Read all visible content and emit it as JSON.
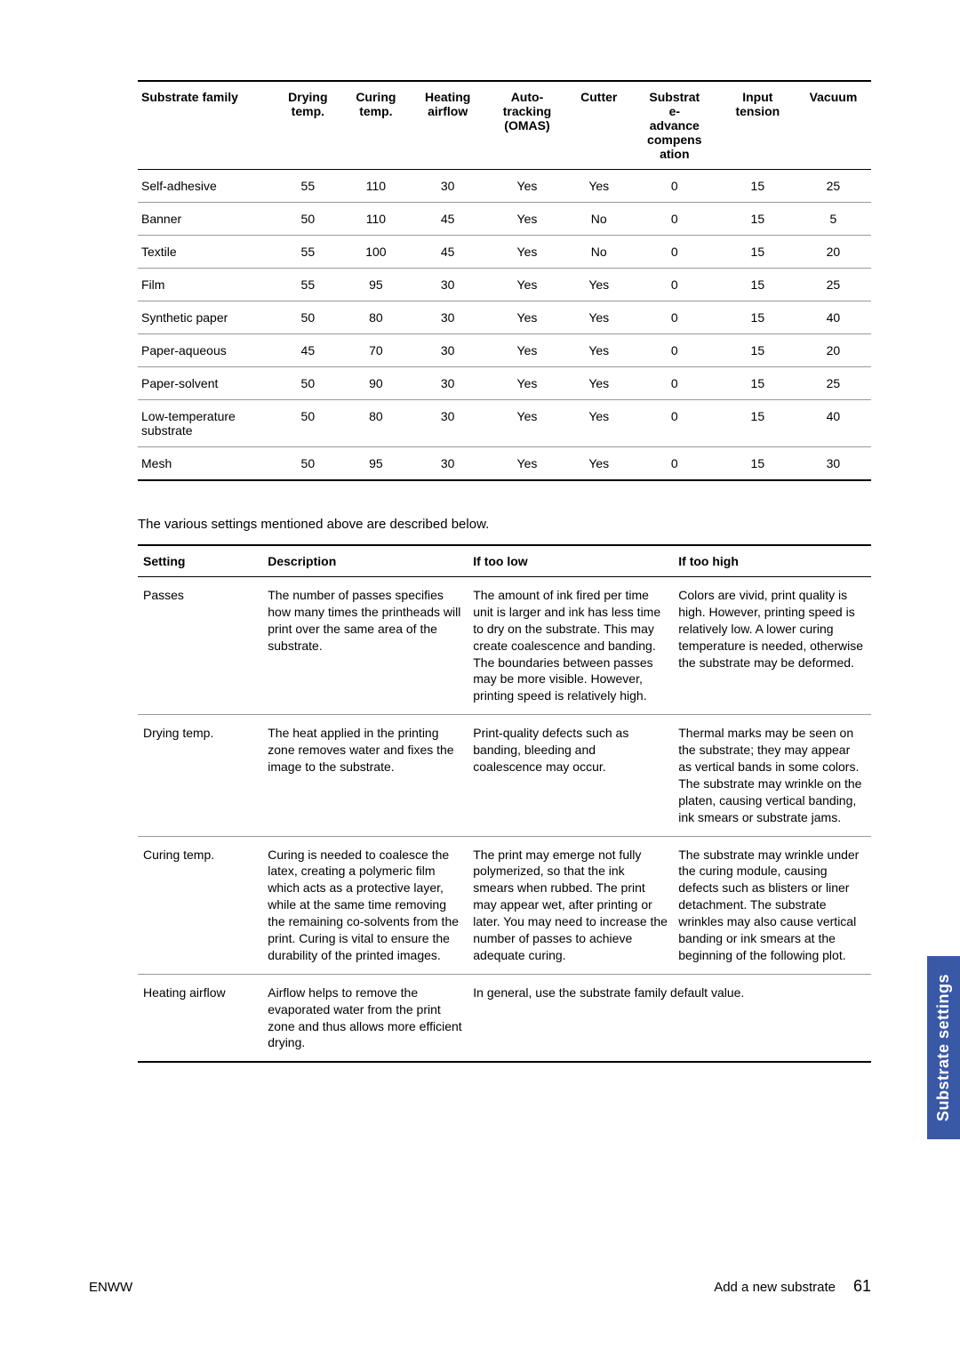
{
  "table1": {
    "headers": [
      "Substrate family",
      "Drying temp.",
      "Curing temp.",
      "Heating airflow",
      "Auto-tracking (OMAS)",
      "Cutter",
      "Substrate-advance compensation",
      "Input tension",
      "Vacuum"
    ],
    "rows": [
      [
        "Self-adhesive",
        "55",
        "110",
        "30",
        "Yes",
        "Yes",
        "0",
        "15",
        "25"
      ],
      [
        "Banner",
        "50",
        "110",
        "45",
        "Yes",
        "No",
        "0",
        "15",
        "5"
      ],
      [
        "Textile",
        "55",
        "100",
        "45",
        "Yes",
        "No",
        "0",
        "15",
        "20"
      ],
      [
        "Film",
        "55",
        "95",
        "30",
        "Yes",
        "Yes",
        "0",
        "15",
        "25"
      ],
      [
        "Synthetic paper",
        "50",
        "80",
        "30",
        "Yes",
        "Yes",
        "0",
        "15",
        "40"
      ],
      [
        "Paper-aqueous",
        "45",
        "70",
        "30",
        "Yes",
        "Yes",
        "0",
        "15",
        "20"
      ],
      [
        "Paper-solvent",
        "50",
        "90",
        "30",
        "Yes",
        "Yes",
        "0",
        "15",
        "25"
      ],
      [
        "Low-temperature substrate",
        "50",
        "80",
        "30",
        "Yes",
        "Yes",
        "0",
        "15",
        "40"
      ],
      [
        "Mesh",
        "50",
        "95",
        "30",
        "Yes",
        "Yes",
        "0",
        "15",
        "30"
      ]
    ]
  },
  "intro_text": "The various settings mentioned above are described below.",
  "table2": {
    "headers": [
      "Setting",
      "Description",
      "If too low",
      "If too high"
    ],
    "rows": [
      {
        "setting": "Passes",
        "description": "The number of passes specifies how many times the printheads will print over the same area of the substrate.",
        "low": "The amount of ink fired per time unit is larger and ink has less time to dry on the substrate. This may create coalescence and banding. The boundaries between passes may be more visible. However, printing speed is relatively high.",
        "high": "Colors are vivid, print quality is high. However, printing speed is relatively low. A lower curing temperature is needed, otherwise the substrate may be deformed.",
        "colspan": false
      },
      {
        "setting": "Drying temp.",
        "description": "The heat applied in the printing zone removes water and fixes the image to the substrate.",
        "low": "Print-quality defects such as banding, bleeding and coalescence may occur.",
        "high": "Thermal marks may be seen on the substrate; they may appear as vertical bands in some colors. The substrate may wrinkle on the platen, causing vertical banding, ink smears or substrate jams.",
        "colspan": false
      },
      {
        "setting": "Curing temp.",
        "description": "Curing is needed to coalesce the latex, creating a polymeric film which acts as a protective layer, while at the same time removing the remaining co-solvents from the print. Curing is vital to ensure the durability of the printed images.",
        "low": "The print may emerge not fully polymerized, so that the ink smears when rubbed. The print may appear wet, after printing or later. You may need to increase the number of passes to achieve adequate curing.",
        "high": "The substrate may wrinkle under the curing module, causing defects such as blisters or liner detachment. The substrate wrinkles may also cause vertical banding or ink smears at the beginning of the following plot.",
        "colspan": false
      },
      {
        "setting": "Heating airflow",
        "description": "Airflow helps to remove the evaporated water from the print zone and thus allows more efficient drying.",
        "low": "In general, use the substrate family default value.",
        "high": "",
        "colspan": true
      }
    ]
  },
  "side_tab": "Substrate settings",
  "footer": {
    "left": "ENWW",
    "right_text": "Add a new substrate",
    "page": "61"
  },
  "styling": {
    "accent_border_color": "#000000",
    "row_border_color": "#999999",
    "side_tab_bg": "#3958a6",
    "side_tab_text": "#ffffff",
    "body_font_size": 14,
    "header_font_weight": "bold"
  }
}
